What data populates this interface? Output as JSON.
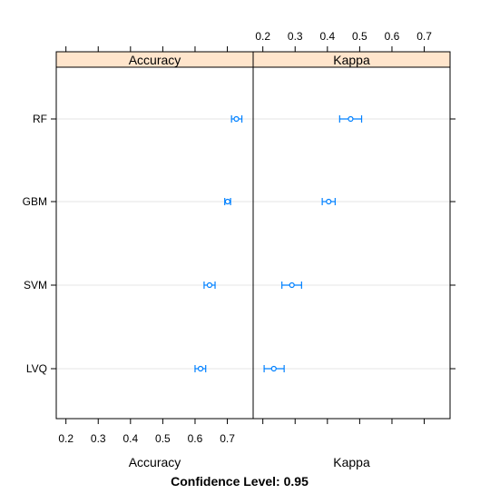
{
  "chart_data": {
    "type": "dotplot",
    "title": "Confidence Level: 0.95",
    "categories": [
      "RF",
      "GBM",
      "SVM",
      "LVQ"
    ],
    "panels": [
      {
        "name": "Accuracy",
        "xlabel": "Accuracy",
        "xlim": [
          0.17,
          0.78
        ],
        "ticks": [
          0.2,
          0.3,
          0.4,
          0.5,
          0.6,
          0.7
        ],
        "tick_labels": [
          "0.2",
          "0.3",
          "0.4",
          "0.5",
          "0.6",
          "0.7"
        ],
        "tick_side": "bottom",
        "points": [
          {
            "model": "RF",
            "value": 0.728,
            "lower": 0.713,
            "upper": 0.745
          },
          {
            "model": "GBM",
            "value": 0.701,
            "lower": 0.692,
            "upper": 0.71
          },
          {
            "model": "SVM",
            "value": 0.645,
            "lower": 0.628,
            "upper": 0.662
          },
          {
            "model": "LVQ",
            "value": 0.617,
            "lower": 0.6,
            "upper": 0.633
          }
        ]
      },
      {
        "name": "Kappa",
        "xlabel": "Kappa",
        "xlim": [
          0.17,
          0.78
        ],
        "ticks": [
          0.2,
          0.3,
          0.4,
          0.5,
          0.6,
          0.7
        ],
        "tick_labels": [
          "0.2",
          "0.3",
          "0.4",
          "0.5",
          "0.6",
          "0.7"
        ],
        "tick_side": "top",
        "points": [
          {
            "model": "RF",
            "value": 0.472,
            "lower": 0.438,
            "upper": 0.506
          },
          {
            "model": "GBM",
            "value": 0.404,
            "lower": 0.384,
            "upper": 0.424
          },
          {
            "model": "SVM",
            "value": 0.29,
            "lower": 0.259,
            "upper": 0.32
          },
          {
            "model": "LVQ",
            "value": 0.234,
            "lower": 0.204,
            "upper": 0.266
          }
        ]
      }
    ],
    "colors": {
      "point": "#0080ff",
      "strip": "#ffe5cc",
      "grid": "#e6e6e6",
      "frame": "#000000"
    },
    "grid": true,
    "legend": "none"
  }
}
